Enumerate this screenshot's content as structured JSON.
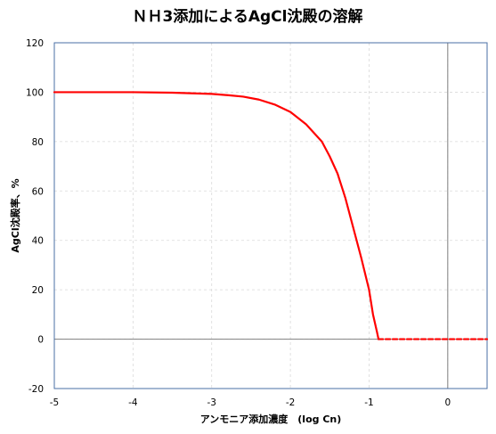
{
  "chart_data": {
    "type": "line",
    "title": "ＮＨ3添加によるAgCl沈殿の溶解",
    "xlabel": "アンモニア添加濃度　(log Cn)",
    "ylabel": "AgCl沈殿率、%",
    "xlim": [
      -5,
      0.5
    ],
    "ylim": [
      -20,
      120
    ],
    "x_ticks": [
      -5,
      -4,
      -3,
      -2,
      -1,
      0
    ],
    "y_ticks": [
      -20,
      0,
      20,
      40,
      60,
      80,
      100,
      120
    ],
    "grid": true,
    "legend": "none",
    "reference_lines": {
      "y": 0,
      "x": 0
    },
    "colors": {
      "series": "#ff0000",
      "axis": "#4a6fa5",
      "ref": "#7f7f7f"
    },
    "series": [
      {
        "style": "solid",
        "x": [
          -5,
          -4.5,
          -4,
          -3.5,
          -3,
          -2.8,
          -2.6,
          -2.4,
          -2.2,
          -2,
          -1.8,
          -1.6,
          -1.5,
          -1.4,
          -1.3,
          -1.2,
          -1.1,
          -1,
          -0.95,
          -0.9,
          -0.88
        ],
        "y": [
          100,
          100,
          100,
          99.8,
          99.3,
          98.8,
          98.2,
          97,
          95,
          92,
          87,
          80,
          74,
          67,
          57,
          45,
          33,
          20,
          10,
          3,
          0
        ]
      },
      {
        "style": "dashed",
        "x": [
          -0.88,
          0.5
        ],
        "y": [
          0,
          0
        ]
      }
    ]
  }
}
